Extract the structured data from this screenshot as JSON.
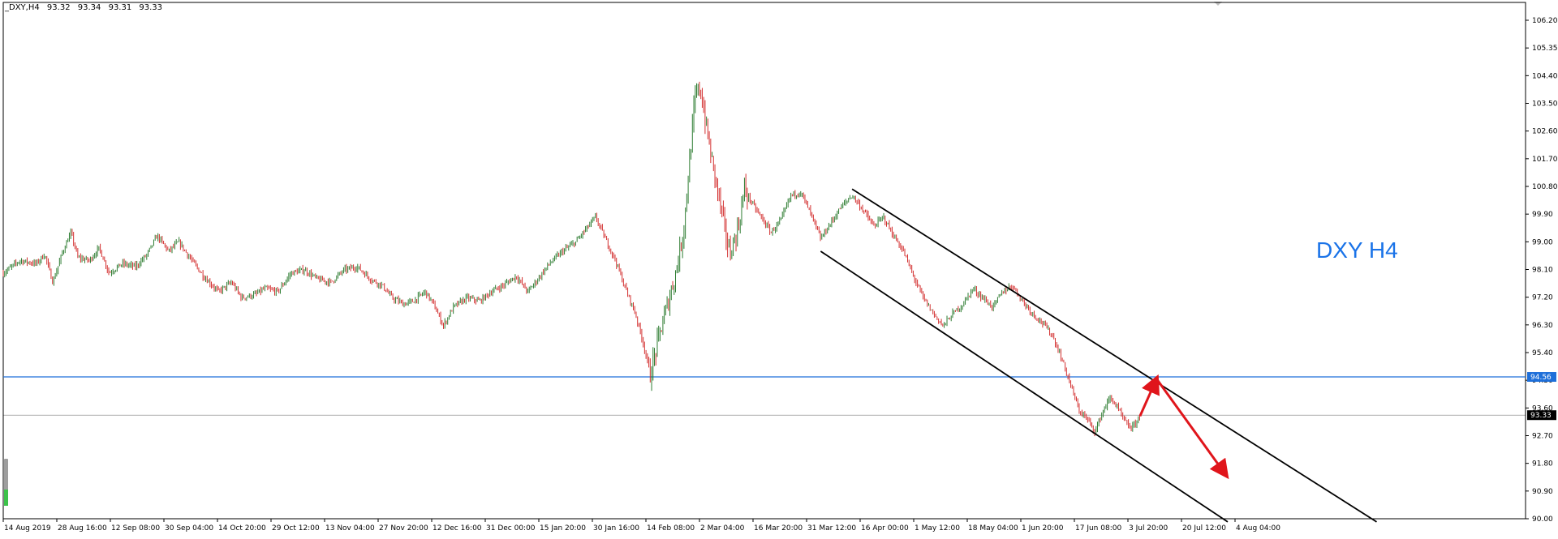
{
  "header": {
    "symbol": "_DXY,H4",
    "open": "93.32",
    "high": "93.34",
    "low": "93.31",
    "close": "93.33"
  },
  "chart_title": "DXY H4",
  "colors": {
    "bull": "#2e7d32",
    "bear": "#d32f2f",
    "hline": "#1e6fd9",
    "channel": "#000000",
    "arrow": "#e0151b",
    "label": "#1a73e8",
    "grid_frame": "#000000"
  },
  "chart_data": {
    "type": "candlestick",
    "title": "DXY H4",
    "timeframe": "H4",
    "ylim": [
      90.0,
      106.6
    ],
    "y_ticks": [
      "106.20",
      "105.35",
      "104.40",
      "103.50",
      "102.60",
      "101.70",
      "100.80",
      "99.90",
      "99.00",
      "98.10",
      "97.20",
      "96.30",
      "95.40",
      "94.50",
      "93.60",
      "92.70",
      "91.80",
      "90.90",
      "90.00"
    ],
    "x_ticks": [
      "14 Aug 2019",
      "28 Aug 16:00",
      "12 Sep 08:00",
      "30 Sep 04:00",
      "14 Oct 20:00",
      "29 Oct 12:00",
      "13 Nov 04:00",
      "27 Nov 20:00",
      "12 Dec 16:00",
      "31 Dec 00:00",
      "15 Jan 20:00",
      "30 Jan 16:00",
      "14 Feb 08:00",
      "2 Mar 04:00",
      "16 Mar 20:00",
      "31 Mar 12:00",
      "16 Apr 00:00",
      "1 May 12:00",
      "18 May 04:00",
      "1 Jun 20:00",
      "17 Jun 08:00",
      "3 Jul 20:00",
      "20 Jul 12:00",
      "4 Aug 04:00"
    ],
    "price_path": [
      [
        0,
        97.9
      ],
      [
        1,
        98.3
      ],
      [
        2,
        98.2
      ],
      [
        2.5,
        98.5
      ],
      [
        3,
        97.6
      ],
      [
        3.6,
        98.6
      ],
      [
        4.1,
        99.2
      ],
      [
        4.5,
        98.4
      ],
      [
        5.2,
        98.3
      ],
      [
        5.8,
        98.7
      ],
      [
        6.4,
        97.9
      ],
      [
        7.2,
        98.2
      ],
      [
        8,
        98.1
      ],
      [
        8.7,
        98.5
      ],
      [
        9.3,
        99.1
      ],
      [
        10,
        98.6
      ],
      [
        10.6,
        98.9
      ],
      [
        11.4,
        98.3
      ],
      [
        12.1,
        97.8
      ],
      [
        13,
        97.3
      ],
      [
        13.8,
        97.6
      ],
      [
        14.4,
        97.1
      ],
      [
        15.2,
        97.2
      ],
      [
        15.8,
        97.4
      ],
      [
        16.6,
        97.3
      ],
      [
        17.4,
        97.9
      ],
      [
        18.2,
        98.0
      ],
      [
        19,
        97.7
      ],
      [
        19.8,
        97.6
      ],
      [
        20.6,
        98.0
      ],
      [
        21.4,
        98.1
      ],
      [
        22.2,
        97.7
      ],
      [
        22.9,
        97.5
      ],
      [
        23.5,
        97.1
      ],
      [
        24.2,
        96.9
      ],
      [
        24.8,
        97.0
      ],
      [
        25.5,
        97.3
      ],
      [
        26,
        96.9
      ],
      [
        26.6,
        96.2
      ],
      [
        27.2,
        96.8
      ],
      [
        28,
        97.1
      ],
      [
        28.8,
        97.0
      ],
      [
        29.5,
        97.3
      ],
      [
        30.2,
        97.5
      ],
      [
        31,
        97.8
      ],
      [
        31.7,
        97.3
      ],
      [
        32.3,
        97.7
      ],
      [
        33,
        98.2
      ],
      [
        33.8,
        98.6
      ],
      [
        34.6,
        98.9
      ],
      [
        35.2,
        99.3
      ],
      [
        35.8,
        99.7
      ],
      [
        36.3,
        99.1
      ],
      [
        37,
        98.3
      ],
      [
        37.6,
        97.4
      ],
      [
        38.2,
        96.6
      ],
      [
        38.7,
        95.6
      ],
      [
        39.1,
        94.6
      ],
      [
        39.6,
        95.8
      ],
      [
        40.1,
        96.8
      ],
      [
        40.6,
        97.8
      ],
      [
        41.1,
        99.2
      ],
      [
        41.5,
        101.6
      ],
      [
        41.8,
        103.5
      ],
      [
        42.1,
        103.9
      ],
      [
        42.4,
        102.9
      ],
      [
        42.8,
        101.6
      ],
      [
        43.2,
        100.5
      ],
      [
        43.5,
        99.6
      ],
      [
        43.9,
        98.5
      ],
      [
        44.4,
        99.3
      ],
      [
        44.8,
        100.6
      ],
      [
        45.3,
        100.1
      ],
      [
        45.8,
        99.7
      ],
      [
        46.4,
        99.2
      ],
      [
        47,
        99.6
      ],
      [
        47.6,
        100.4
      ],
      [
        48.2,
        100.5
      ],
      [
        48.8,
        99.8
      ],
      [
        49.4,
        99.0
      ],
      [
        50,
        99.5
      ],
      [
        50.6,
        100.0
      ],
      [
        51.3,
        100.4
      ],
      [
        52,
        99.9
      ],
      [
        52.6,
        99.4
      ],
      [
        53.2,
        99.7
      ],
      [
        53.8,
        99.1
      ],
      [
        54.4,
        98.6
      ],
      [
        55,
        97.8
      ],
      [
        55.6,
        97.1
      ],
      [
        56.2,
        96.6
      ],
      [
        56.8,
        96.2
      ],
      [
        57.4,
        96.6
      ],
      [
        58,
        96.9
      ],
      [
        58.6,
        97.4
      ],
      [
        59.2,
        97.1
      ],
      [
        59.8,
        96.8
      ],
      [
        60.4,
        97.3
      ],
      [
        61,
        97.5
      ],
      [
        61.6,
        97.0
      ],
      [
        62.2,
        96.6
      ],
      [
        62.8,
        96.3
      ],
      [
        63.4,
        95.9
      ],
      [
        64,
        95.1
      ],
      [
        64.5,
        94.3
      ],
      [
        65,
        93.5
      ],
      [
        65.5,
        93.2
      ],
      [
        66,
        92.8
      ],
      [
        66.4,
        93.4
      ],
      [
        66.9,
        93.9
      ],
      [
        67.3,
        93.6
      ],
      [
        67.8,
        93.1
      ],
      [
        68.2,
        92.9
      ],
      [
        68.7,
        93.3
      ]
    ],
    "horizontal_lines": [
      {
        "value": 94.56,
        "label": "94.56",
        "color": "#1e6fd9"
      },
      {
        "value": 93.33,
        "label": "93.33",
        "color": "#000000"
      }
    ],
    "channel": {
      "upper": {
        "from": [
          51.3,
          100.6
        ],
        "to": [
          83,
          89.9
        ]
      },
      "lower": {
        "from": [
          49.4,
          98.6
        ],
        "to": [
          74,
          89.9
        ]
      }
    },
    "arrows": [
      {
        "from": [
          68.7,
          93.3
        ],
        "to": [
          69.7,
          94.5
        ]
      },
      {
        "from": [
          69.7,
          94.5
        ],
        "to": [
          73.9,
          91.4
        ]
      }
    ]
  }
}
